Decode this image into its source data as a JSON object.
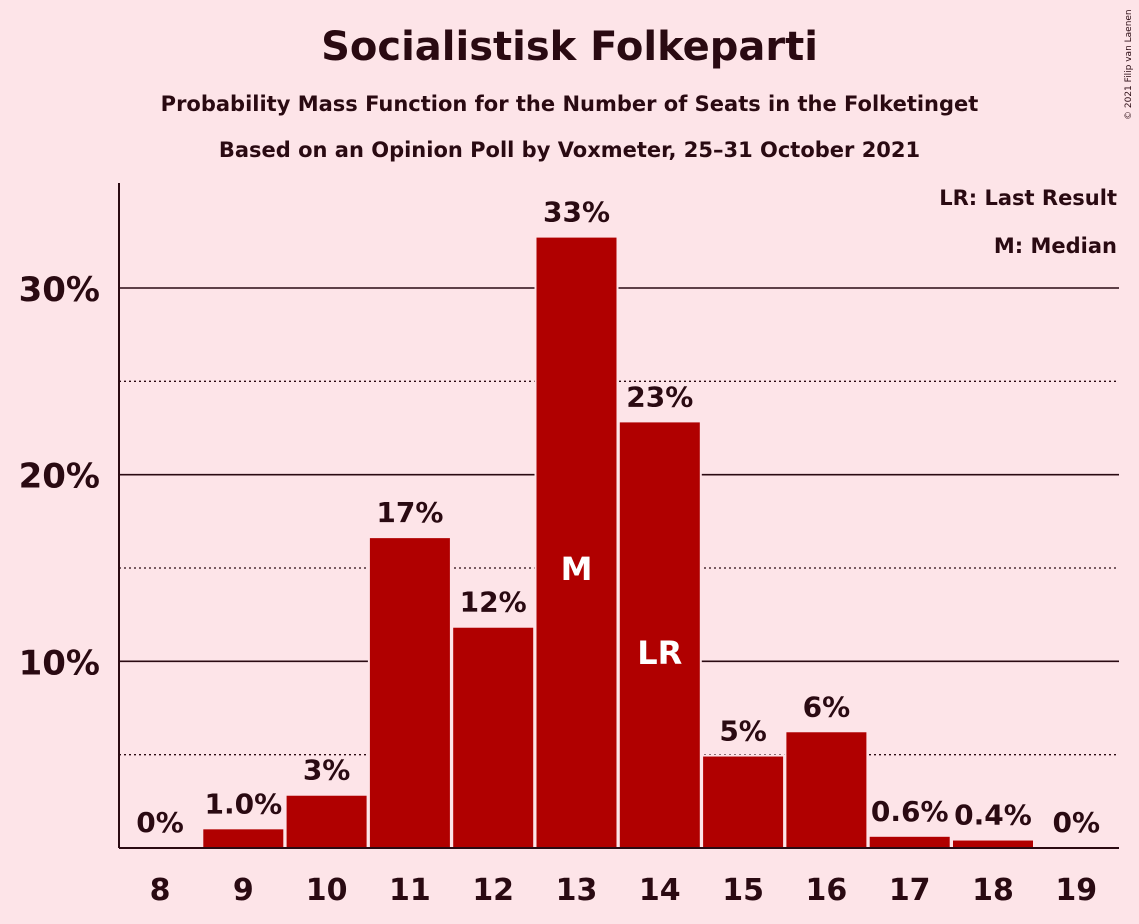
{
  "chart_data": {
    "type": "bar",
    "title": "Socialistisk Folkeparti",
    "subtitle": "Probability Mass Function for the Number of Seats in the Folketinget",
    "subtitle2": "Based on an Opinion Poll by Voxmeter, 25–31 October 2021",
    "categories": [
      "8",
      "9",
      "10",
      "11",
      "12",
      "13",
      "14",
      "15",
      "16",
      "17",
      "18",
      "19"
    ],
    "values": [
      0,
      1.0,
      2.8,
      16.6,
      11.8,
      32.7,
      22.8,
      4.9,
      6.2,
      0.6,
      0.4,
      0
    ],
    "data_labels": [
      "0%",
      "1.0%",
      "3%",
      "17%",
      "12%",
      "33%",
      "23%",
      "5%",
      "6%",
      "0.6%",
      "0.4%",
      "0%"
    ],
    "bar_markers": [
      {
        "category": "13",
        "label": "M"
      },
      {
        "category": "14",
        "label": "LR"
      }
    ],
    "y_ticks": [
      10,
      20,
      30
    ],
    "y_tick_labels": [
      "10%",
      "20%",
      "30%"
    ],
    "y_minor_ticks": [
      5,
      15,
      25
    ],
    "ylim": [
      0,
      35
    ],
    "xlabel": "",
    "ylabel": "",
    "bar_color": "#b00000",
    "grid": true,
    "legend": {
      "position": "top-right",
      "entries": [
        "LR: Last Result",
        "M: Median"
      ]
    },
    "copyright": "© 2021 Filip van Laenen"
  }
}
